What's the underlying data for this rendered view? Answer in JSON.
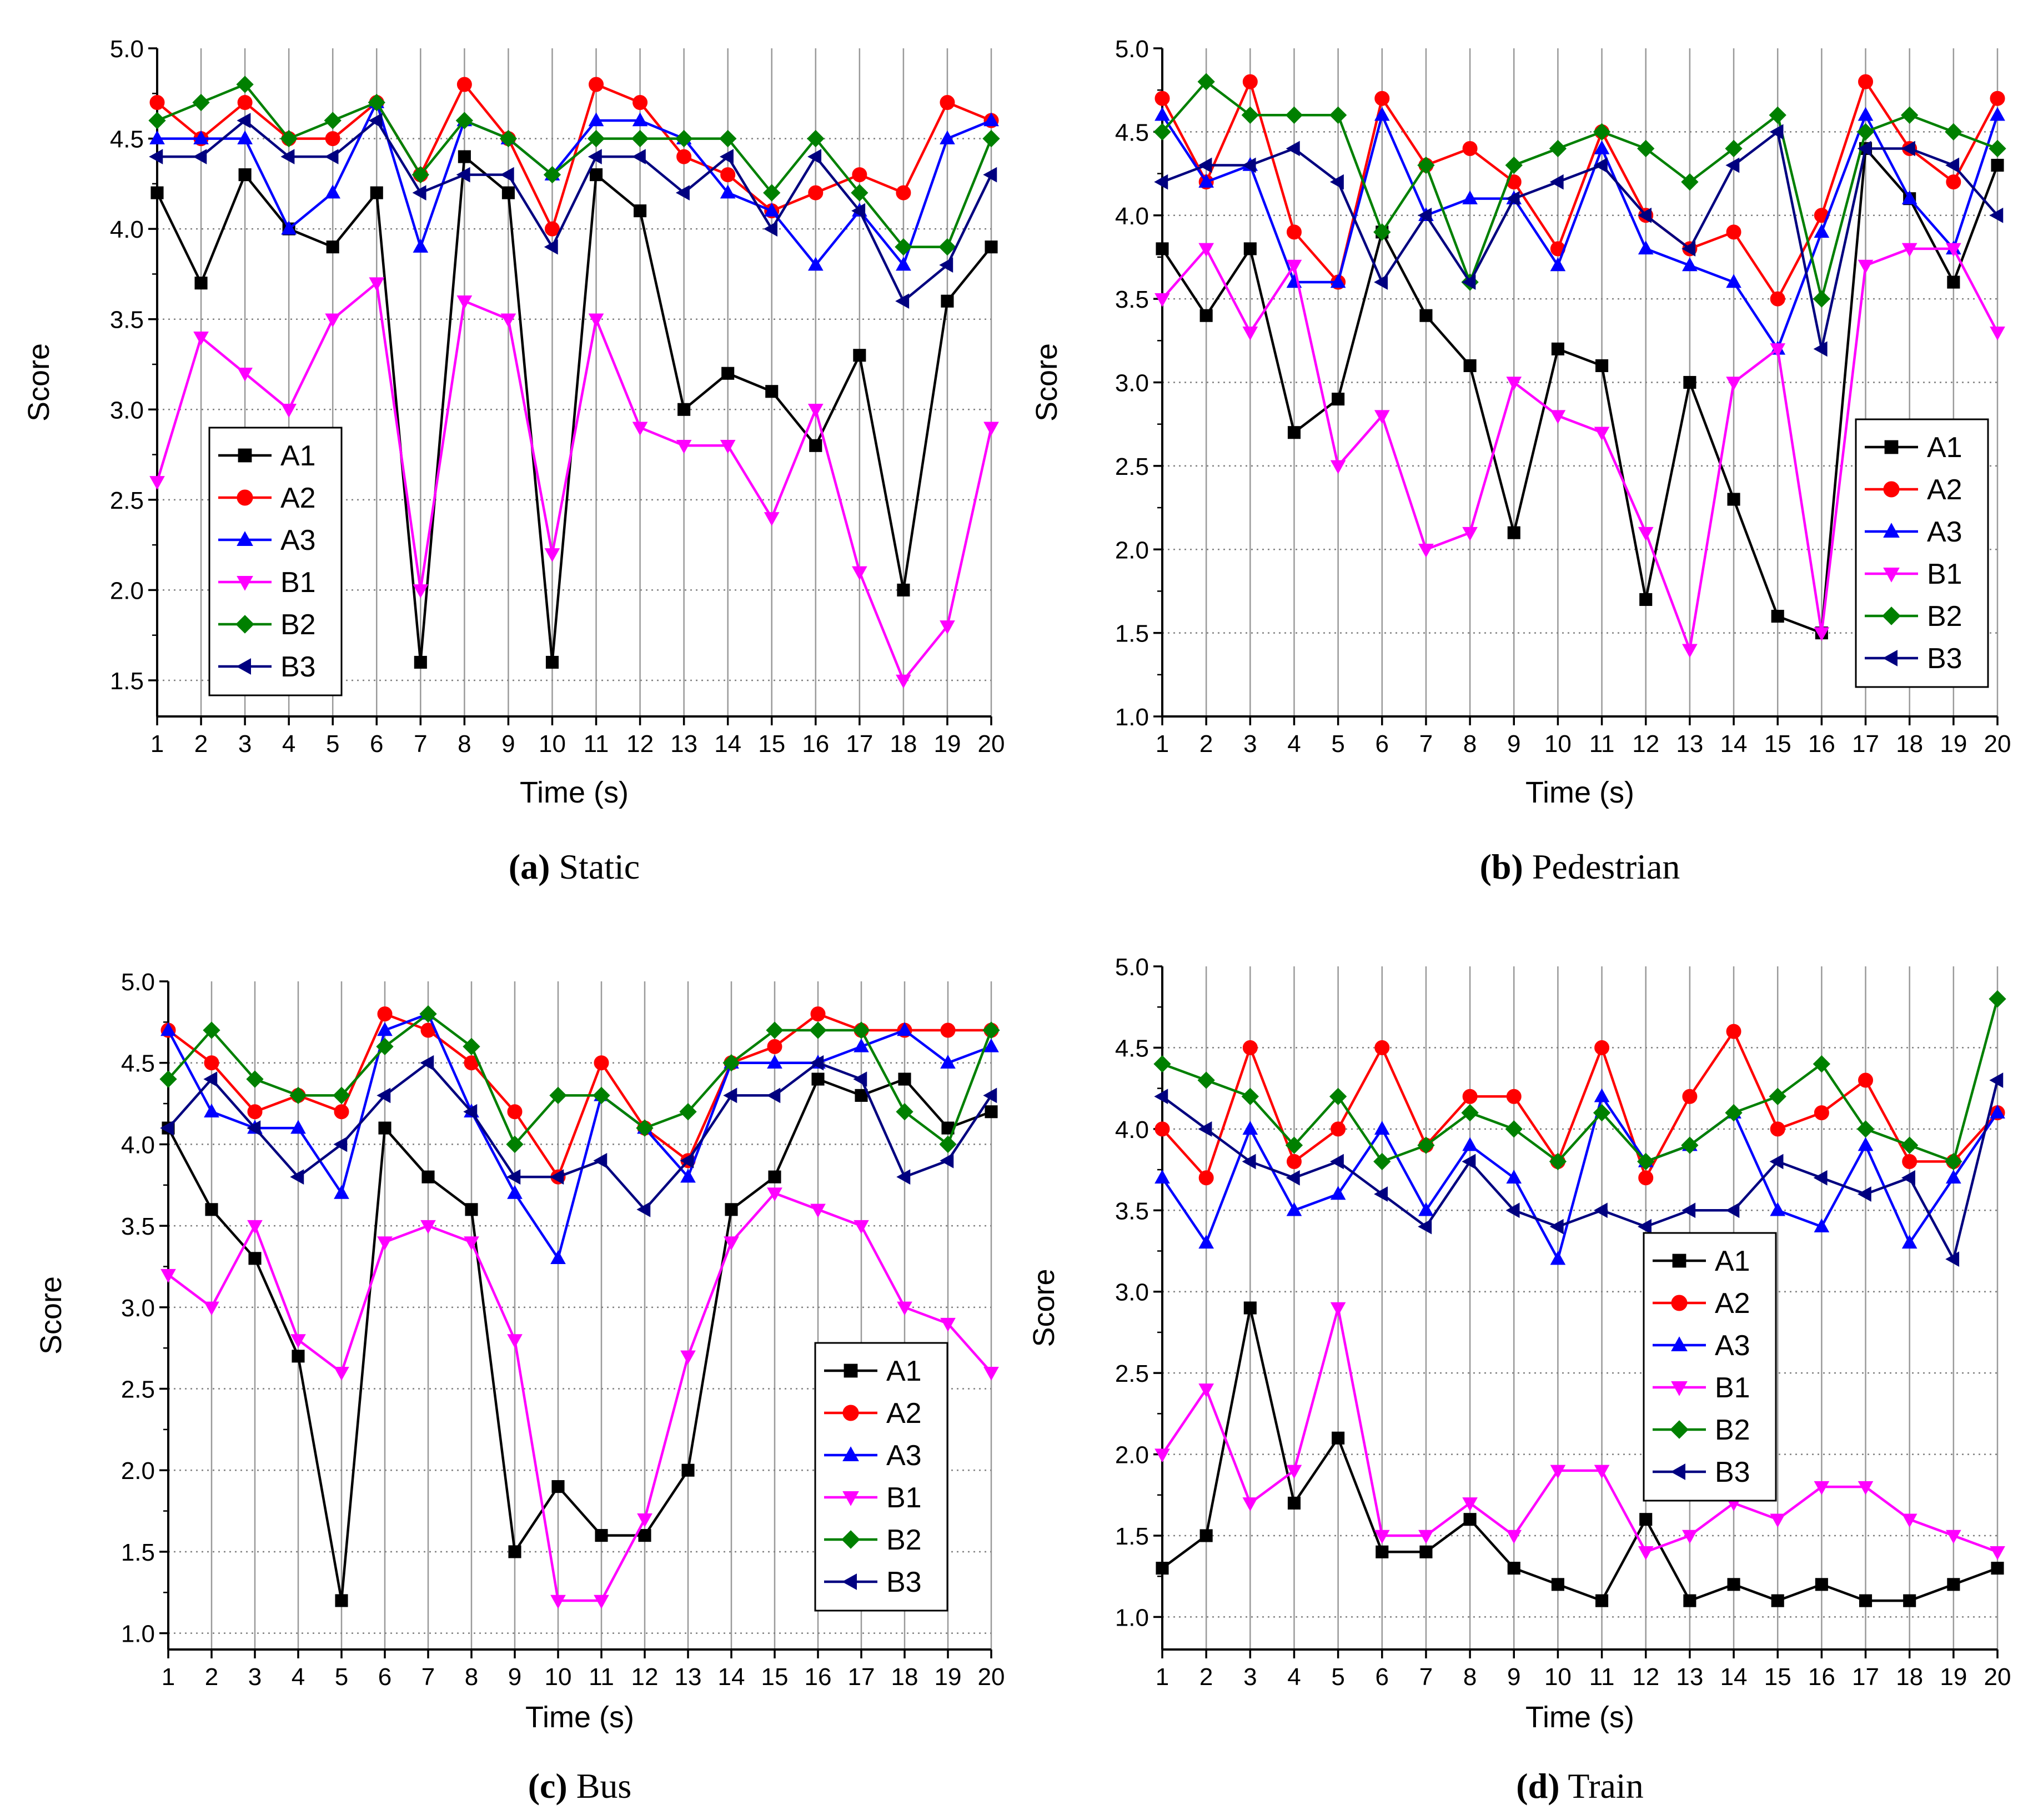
{
  "colors": {
    "A1": "#000000",
    "A2": "#ff0000",
    "A3": "#0000ff",
    "B1": "#ff00ff",
    "B2": "#008000",
    "B3": "#000080"
  },
  "chart_data": [
    {
      "type": "line",
      "caption_label": "(a)",
      "caption_text": "Static",
      "xlabel": "Time (s)",
      "ylabel": "Score",
      "ylim": [
        1.3,
        5.0
      ],
      "yticks": [
        "1.5",
        "2.0",
        "2.5",
        "3.0",
        "3.5",
        "4.0",
        "4.5",
        "5.0"
      ],
      "x": [
        1,
        2,
        3,
        4,
        5,
        6,
        7,
        8,
        9,
        10,
        11,
        12,
        13,
        14,
        15,
        16,
        17,
        18,
        19,
        20
      ],
      "xticks": [
        "1",
        "2",
        "3",
        "4",
        "5",
        "6",
        "7",
        "8",
        "9",
        "10",
        "11",
        "12",
        "13",
        "14",
        "15",
        "16",
        "17",
        "18",
        "19",
        "20"
      ],
      "legend_position": "lower-left",
      "series": [
        {
          "name": "A1",
          "marker": "square",
          "values": [
            4.2,
            3.7,
            4.3,
            4.0,
            3.9,
            4.2,
            1.6,
            4.4,
            4.2,
            1.6,
            4.3,
            4.1,
            3.0,
            3.2,
            3.1,
            2.8,
            3.3,
            2.0,
            3.6,
            3.9
          ]
        },
        {
          "name": "A2",
          "marker": "circle",
          "values": [
            4.7,
            4.5,
            4.7,
            4.5,
            4.5,
            4.7,
            4.3,
            4.8,
            4.5,
            4.0,
            4.8,
            4.7,
            4.4,
            4.3,
            4.1,
            4.2,
            4.3,
            4.2,
            4.7,
            4.6
          ]
        },
        {
          "name": "A3",
          "marker": "triangle-up",
          "values": [
            4.5,
            4.5,
            4.5,
            4.0,
            4.2,
            4.7,
            3.9,
            4.6,
            4.5,
            4.3,
            4.6,
            4.6,
            4.5,
            4.2,
            4.1,
            3.8,
            4.1,
            3.8,
            4.5,
            4.6
          ]
        },
        {
          "name": "B1",
          "marker": "triangle-down",
          "values": [
            2.6,
            3.4,
            3.2,
            3.0,
            3.5,
            3.7,
            2.0,
            3.6,
            3.5,
            2.2,
            3.5,
            2.9,
            2.8,
            2.8,
            2.4,
            3.0,
            2.1,
            1.5,
            1.8,
            2.9
          ]
        },
        {
          "name": "B2",
          "marker": "diamond",
          "values": [
            4.6,
            4.7,
            4.8,
            4.5,
            4.6,
            4.7,
            4.3,
            4.6,
            4.5,
            4.3,
            4.5,
            4.5,
            4.5,
            4.5,
            4.2,
            4.5,
            4.2,
            3.9,
            3.9,
            4.5
          ]
        },
        {
          "name": "B3",
          "marker": "triangle-left",
          "values": [
            4.4,
            4.4,
            4.6,
            4.4,
            4.4,
            4.6,
            4.2,
            4.3,
            4.3,
            3.9,
            4.4,
            4.4,
            4.2,
            4.4,
            4.0,
            4.4,
            4.1,
            3.6,
            3.8,
            4.3
          ]
        }
      ]
    },
    {
      "type": "line",
      "caption_label": "(b)",
      "caption_text": "Pedestrian",
      "xlabel": "Time (s)",
      "ylabel": "Score",
      "ylim": [
        1.0,
        5.0
      ],
      "yticks": [
        "1.0",
        "1.5",
        "2.0",
        "2.5",
        "3.0",
        "3.5",
        "4.0",
        "4.5",
        "5.0"
      ],
      "x": [
        1,
        2,
        3,
        4,
        5,
        6,
        7,
        8,
        9,
        10,
        11,
        12,
        13,
        14,
        15,
        16,
        17,
        18,
        19,
        20
      ],
      "xticks": [
        "1",
        "2",
        "3",
        "4",
        "5",
        "6",
        "7",
        "8",
        "9",
        "10",
        "11",
        "12",
        "13",
        "14",
        "15",
        "16",
        "17",
        "18",
        "19",
        "20"
      ],
      "legend_position": "lower-right",
      "series": [
        {
          "name": "A1",
          "marker": "square",
          "values": [
            3.8,
            3.4,
            3.8,
            2.7,
            2.9,
            3.9,
            3.4,
            3.1,
            2.1,
            3.2,
            3.1,
            1.7,
            3.0,
            2.3,
            1.6,
            1.5,
            4.4,
            4.1,
            3.6,
            4.3
          ]
        },
        {
          "name": "A2",
          "marker": "circle",
          "values": [
            4.7,
            4.2,
            4.8,
            3.9,
            3.6,
            4.7,
            4.3,
            4.4,
            4.2,
            3.8,
            4.5,
            4.0,
            3.8,
            3.9,
            3.5,
            4.0,
            4.8,
            4.4,
            4.2,
            4.7
          ]
        },
        {
          "name": "A3",
          "marker": "triangle-up",
          "values": [
            4.6,
            4.2,
            4.3,
            3.6,
            3.6,
            4.6,
            4.0,
            4.1,
            4.1,
            3.7,
            4.4,
            3.8,
            3.7,
            3.6,
            3.2,
            3.9,
            4.6,
            4.1,
            3.8,
            4.6
          ]
        },
        {
          "name": "B1",
          "marker": "triangle-down",
          "values": [
            3.5,
            3.8,
            3.3,
            3.7,
            2.5,
            2.8,
            2.0,
            2.1,
            3.0,
            2.8,
            2.7,
            2.1,
            1.4,
            3.0,
            3.2,
            1.5,
            3.7,
            3.8,
            3.8,
            3.3
          ]
        },
        {
          "name": "B2",
          "marker": "diamond",
          "values": [
            4.5,
            4.8,
            4.6,
            4.6,
            4.6,
            3.9,
            4.3,
            3.6,
            4.3,
            4.4,
            4.5,
            4.4,
            4.2,
            4.4,
            4.6,
            3.5,
            4.5,
            4.6,
            4.5,
            4.4
          ]
        },
        {
          "name": "B3",
          "marker": "triangle-left",
          "values": [
            4.2,
            4.3,
            4.3,
            4.4,
            4.2,
            3.6,
            4.0,
            3.6,
            4.1,
            4.2,
            4.3,
            4.0,
            3.8,
            4.3,
            4.5,
            3.2,
            4.4,
            4.4,
            4.3,
            4.0
          ]
        }
      ]
    },
    {
      "type": "line",
      "caption_label": "(c)",
      "caption_text": "Bus",
      "xlabel": "Time (s)",
      "ylabel": "Score",
      "ylim": [
        0.9,
        5.0
      ],
      "yticks": [
        "1.0",
        "1.5",
        "2.0",
        "2.5",
        "3.0",
        "3.5",
        "4.0",
        "4.5",
        "5.0"
      ],
      "x": [
        1,
        2,
        3,
        4,
        5,
        6,
        7,
        8,
        9,
        10,
        11,
        12,
        13,
        14,
        15,
        16,
        17,
        18,
        19,
        20
      ],
      "xticks": [
        "1",
        "2",
        "3",
        "4",
        "5",
        "6",
        "7",
        "8",
        "9",
        "10",
        "11",
        "12",
        "13",
        "14",
        "15",
        "16",
        "17",
        "18",
        "19",
        "20"
      ],
      "legend_position": "lower-right",
      "series": [
        {
          "name": "A1",
          "marker": "square",
          "values": [
            4.1,
            3.6,
            3.3,
            2.7,
            1.2,
            4.1,
            3.8,
            3.6,
            1.5,
            1.9,
            1.6,
            1.6,
            2.0,
            3.6,
            3.8,
            4.4,
            4.3,
            4.4,
            4.1,
            4.2
          ]
        },
        {
          "name": "A2",
          "marker": "circle",
          "values": [
            4.7,
            4.5,
            4.2,
            4.3,
            4.2,
            4.8,
            4.7,
            4.5,
            4.2,
            3.8,
            4.5,
            4.1,
            3.9,
            4.5,
            4.6,
            4.8,
            4.7,
            4.7,
            4.7,
            4.7
          ]
        },
        {
          "name": "A3",
          "marker": "triangle-up",
          "values": [
            4.7,
            4.2,
            4.1,
            4.1,
            3.7,
            4.7,
            4.8,
            4.2,
            3.7,
            3.3,
            4.3,
            4.1,
            3.8,
            4.5,
            4.5,
            4.5,
            4.6,
            4.7,
            4.5,
            4.6
          ]
        },
        {
          "name": "B1",
          "marker": "triangle-down",
          "values": [
            3.2,
            3.0,
            3.5,
            2.8,
            2.6,
            3.4,
            3.5,
            3.4,
            2.8,
            1.2,
            1.2,
            1.7,
            2.7,
            3.4,
            3.7,
            3.6,
            3.5,
            3.0,
            2.9,
            2.6
          ]
        },
        {
          "name": "B2",
          "marker": "diamond",
          "values": [
            4.4,
            4.7,
            4.4,
            4.3,
            4.3,
            4.6,
            4.8,
            4.6,
            4.0,
            4.3,
            4.3,
            4.1,
            4.2,
            4.5,
            4.7,
            4.7,
            4.7,
            4.2,
            4.0,
            4.7
          ]
        },
        {
          "name": "B3",
          "marker": "triangle-left",
          "values": [
            4.1,
            4.4,
            4.1,
            3.8,
            4.0,
            4.3,
            4.5,
            4.2,
            3.8,
            3.8,
            3.9,
            3.6,
            3.9,
            4.3,
            4.3,
            4.5,
            4.4,
            3.8,
            3.9,
            4.3
          ]
        }
      ]
    },
    {
      "type": "line",
      "caption_label": "(d)",
      "caption_text": "Train",
      "xlabel": "Time (s)",
      "ylabel": "Score",
      "ylim": [
        0.8,
        5.0
      ],
      "yticks": [
        "1.0",
        "1.5",
        "2.0",
        "2.5",
        "3.0",
        "3.5",
        "4.0",
        "4.5",
        "5.0"
      ],
      "x": [
        1,
        2,
        3,
        4,
        5,
        6,
        7,
        8,
        9,
        10,
        11,
        12,
        13,
        14,
        15,
        16,
        17,
        18,
        19,
        20
      ],
      "xticks": [
        "1",
        "2",
        "3",
        "4",
        "5",
        "6",
        "7",
        "8",
        "9",
        "10",
        "11",
        "12",
        "13",
        "14",
        "15",
        "16",
        "17",
        "18",
        "19",
        "20"
      ],
      "legend_position": "center-left",
      "series": [
        {
          "name": "A1",
          "marker": "square",
          "values": [
            1.3,
            1.5,
            2.9,
            1.7,
            2.1,
            1.4,
            1.4,
            1.6,
            1.3,
            1.2,
            1.1,
            1.6,
            1.1,
            1.2,
            1.1,
            1.2,
            1.1,
            1.1,
            1.2,
            1.3
          ]
        },
        {
          "name": "A2",
          "marker": "circle",
          "values": [
            4.0,
            3.7,
            4.5,
            3.8,
            4.0,
            4.5,
            3.9,
            4.2,
            4.2,
            3.8,
            4.5,
            3.7,
            4.2,
            4.6,
            4.0,
            4.1,
            4.3,
            3.8,
            3.8,
            4.1
          ]
        },
        {
          "name": "A3",
          "marker": "triangle-up",
          "values": [
            3.7,
            3.3,
            4.0,
            3.5,
            3.6,
            4.0,
            3.5,
            3.9,
            3.7,
            3.2,
            4.2,
            3.8,
            3.9,
            4.1,
            3.5,
            3.4,
            3.9,
            3.3,
            3.7,
            4.1
          ]
        },
        {
          "name": "B1",
          "marker": "triangle-down",
          "values": [
            2.0,
            2.4,
            1.7,
            1.9,
            2.9,
            1.5,
            1.5,
            1.7,
            1.5,
            1.9,
            1.9,
            1.4,
            1.5,
            1.7,
            1.6,
            1.8,
            1.8,
            1.6,
            1.5,
            1.4
          ]
        },
        {
          "name": "B2",
          "marker": "diamond",
          "values": [
            4.4,
            4.3,
            4.2,
            3.9,
            4.2,
            3.8,
            3.9,
            4.1,
            4.0,
            3.8,
            4.1,
            3.8,
            3.9,
            4.1,
            4.2,
            4.4,
            4.0,
            3.9,
            3.8,
            4.8
          ]
        },
        {
          "name": "B3",
          "marker": "triangle-left",
          "values": [
            4.2,
            4.0,
            3.8,
            3.7,
            3.8,
            3.6,
            3.4,
            3.8,
            3.5,
            3.4,
            3.5,
            3.4,
            3.5,
            3.5,
            3.8,
            3.7,
            3.6,
            3.7,
            3.2,
            4.3
          ]
        }
      ]
    }
  ]
}
